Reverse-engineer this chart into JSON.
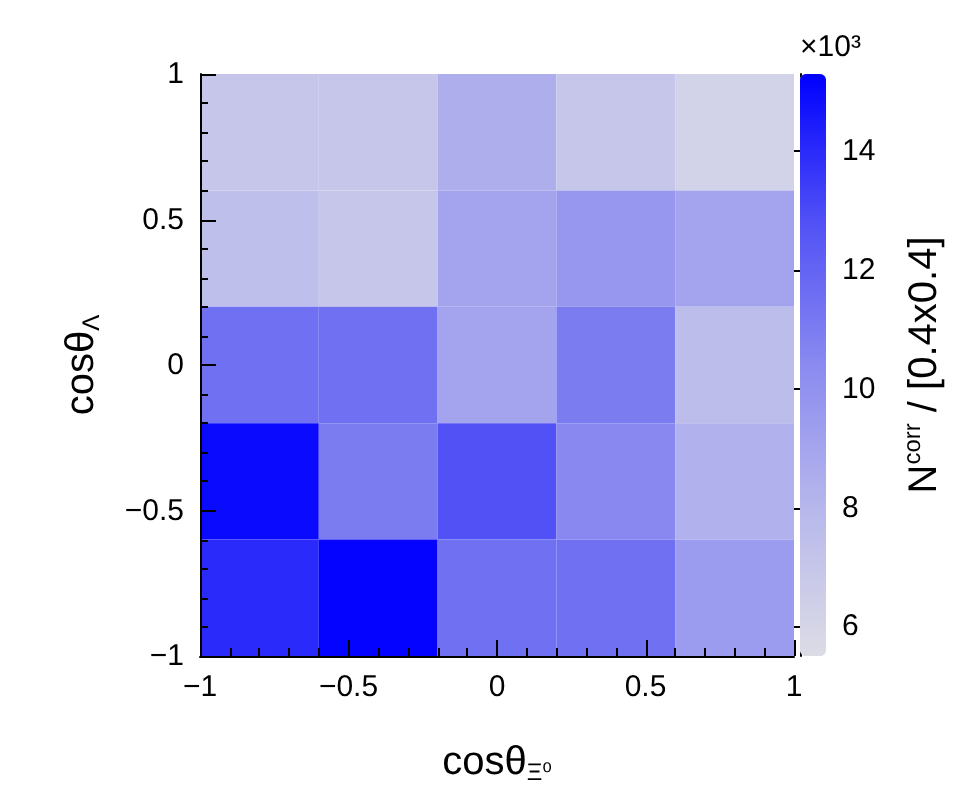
{
  "chart_data": {
    "type": "heatmap",
    "xlabel": "cosθ$_{Ξ⁰}$",
    "ylabel": "cosθ$_{Λ}$",
    "clabel": "N$^{corr}$ / [0.4x0.4]",
    "annotations": [
      "×10³"
    ],
    "cells": [
      [
        7.0,
        7.0,
        8.5,
        7.0,
        6.2
      ],
      [
        7.5,
        7.0,
        9.0,
        9.7,
        9.0
      ],
      [
        11.5,
        11.5,
        9.0,
        11.0,
        7.6
      ],
      [
        15.0,
        11.0,
        12.8,
        10.5,
        8.3
      ],
      [
        14.0,
        15.2,
        11.5,
        11.5,
        9.5
      ]
    ],
    "xlim": [
      -1,
      1
    ],
    "xticks": [
      -1,
      -0.5,
      0,
      0.5,
      1
    ],
    "ylim": [
      -1,
      1
    ],
    "yticks": [
      -1,
      -0.5,
      0,
      0.5,
      1
    ],
    "clim": [
      5.5,
      15.3
    ],
    "cticks": [
      6,
      8,
      10,
      12,
      14
    ]
  }
}
